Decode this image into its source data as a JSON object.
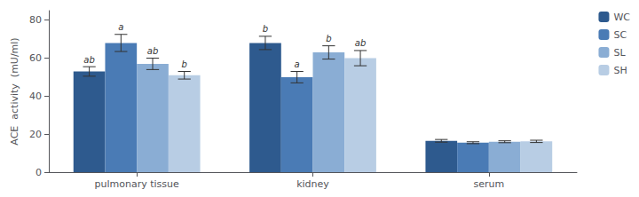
{
  "chart_data": {
    "type": "bar",
    "categories": [
      "pulmonary tissue",
      "kidney",
      "serum"
    ],
    "series": [
      {
        "name": "WC",
        "color": "#2E5A8E",
        "values": [
          53,
          68,
          16.5
        ],
        "errors": [
          2.5,
          3.5,
          0.7
        ],
        "sig_labels": [
          "ab",
          "b",
          null
        ]
      },
      {
        "name": "SC",
        "color": "#4A7BB5",
        "values": [
          68,
          50,
          15.5
        ],
        "errors": [
          4.5,
          3.0,
          0.5
        ],
        "sig_labels": [
          "a",
          "a",
          null
        ]
      },
      {
        "name": "SL",
        "color": "#8AADD4",
        "values": [
          57,
          63,
          16.0
        ],
        "errors": [
          3.0,
          3.5,
          0.5
        ],
        "sig_labels": [
          "ab",
          "b",
          null
        ]
      },
      {
        "name": "SH",
        "color": "#B8CDE4",
        "values": [
          51,
          60,
          16.2
        ],
        "errors": [
          2.0,
          4.0,
          0.6
        ],
        "sig_labels": [
          "b",
          "ab",
          null
        ]
      }
    ],
    "ylabel": "ACE  activity  (mU/ml)",
    "ylim": [
      0,
      85
    ],
    "yticks": [
      0,
      20,
      40,
      60,
      80
    ],
    "grid": false,
    "legend": "upper right"
  }
}
